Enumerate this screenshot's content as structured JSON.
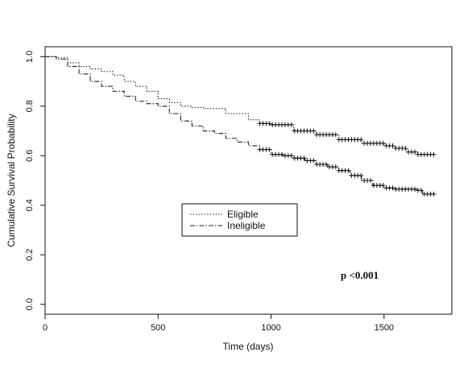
{
  "chart_data": {
    "type": "line",
    "xlabel": "Time (days)",
    "ylabel": "Cumulative Survival Probability",
    "xlim": [
      0,
      1800
    ],
    "ylim": [
      -0.04,
      1.04
    ],
    "x_ticks": [
      0,
      500,
      1000,
      1500
    ],
    "y_ticks": [
      0.0,
      0.2,
      0.4,
      0.6,
      0.8,
      1.0
    ],
    "y_tick_labels": [
      "0.0",
      "0.2",
      "0.4",
      "0.6",
      "0.8",
      "1.0"
    ],
    "grid": false,
    "legend_position": "center",
    "annotation": "p <0.001",
    "series": [
      {
        "name": "Eligible",
        "line_style": "dotted",
        "censor_from": 950,
        "points": [
          [
            0,
            1.0
          ],
          [
            50,
            0.995
          ],
          [
            100,
            0.975
          ],
          [
            150,
            0.96
          ],
          [
            200,
            0.95
          ],
          [
            250,
            0.94
          ],
          [
            300,
            0.925
          ],
          [
            350,
            0.9
          ],
          [
            400,
            0.88
          ],
          [
            450,
            0.86
          ],
          [
            500,
            0.83
          ],
          [
            550,
            0.815
          ],
          [
            600,
            0.8
          ],
          [
            650,
            0.795
          ],
          [
            700,
            0.79
          ],
          [
            800,
            0.77
          ],
          [
            900,
            0.745
          ],
          [
            950,
            0.73
          ],
          [
            1000,
            0.725
          ],
          [
            1100,
            0.7
          ],
          [
            1200,
            0.685
          ],
          [
            1300,
            0.665
          ],
          [
            1400,
            0.65
          ],
          [
            1500,
            0.64
          ],
          [
            1550,
            0.63
          ],
          [
            1600,
            0.615
          ],
          [
            1650,
            0.605
          ],
          [
            1720,
            0.605
          ]
        ]
      },
      {
        "name": "Ineligible",
        "line_style": "dashdot",
        "censor_from": 950,
        "points": [
          [
            0,
            1.0
          ],
          [
            50,
            0.99
          ],
          [
            100,
            0.96
          ],
          [
            150,
            0.93
          ],
          [
            200,
            0.9
          ],
          [
            250,
            0.88
          ],
          [
            300,
            0.86
          ],
          [
            350,
            0.84
          ],
          [
            400,
            0.82
          ],
          [
            450,
            0.81
          ],
          [
            500,
            0.8
          ],
          [
            550,
            0.77
          ],
          [
            600,
            0.74
          ],
          [
            650,
            0.72
          ],
          [
            700,
            0.7
          ],
          [
            750,
            0.69
          ],
          [
            800,
            0.67
          ],
          [
            850,
            0.655
          ],
          [
            900,
            0.64
          ],
          [
            950,
            0.625
          ],
          [
            1000,
            0.605
          ],
          [
            1050,
            0.6
          ],
          [
            1100,
            0.59
          ],
          [
            1150,
            0.58
          ],
          [
            1200,
            0.565
          ],
          [
            1250,
            0.555
          ],
          [
            1300,
            0.54
          ],
          [
            1350,
            0.52
          ],
          [
            1400,
            0.5
          ],
          [
            1450,
            0.48
          ],
          [
            1500,
            0.47
          ],
          [
            1550,
            0.465
          ],
          [
            1600,
            0.465
          ],
          [
            1650,
            0.46
          ],
          [
            1670,
            0.445
          ],
          [
            1730,
            0.445
          ]
        ]
      }
    ]
  }
}
